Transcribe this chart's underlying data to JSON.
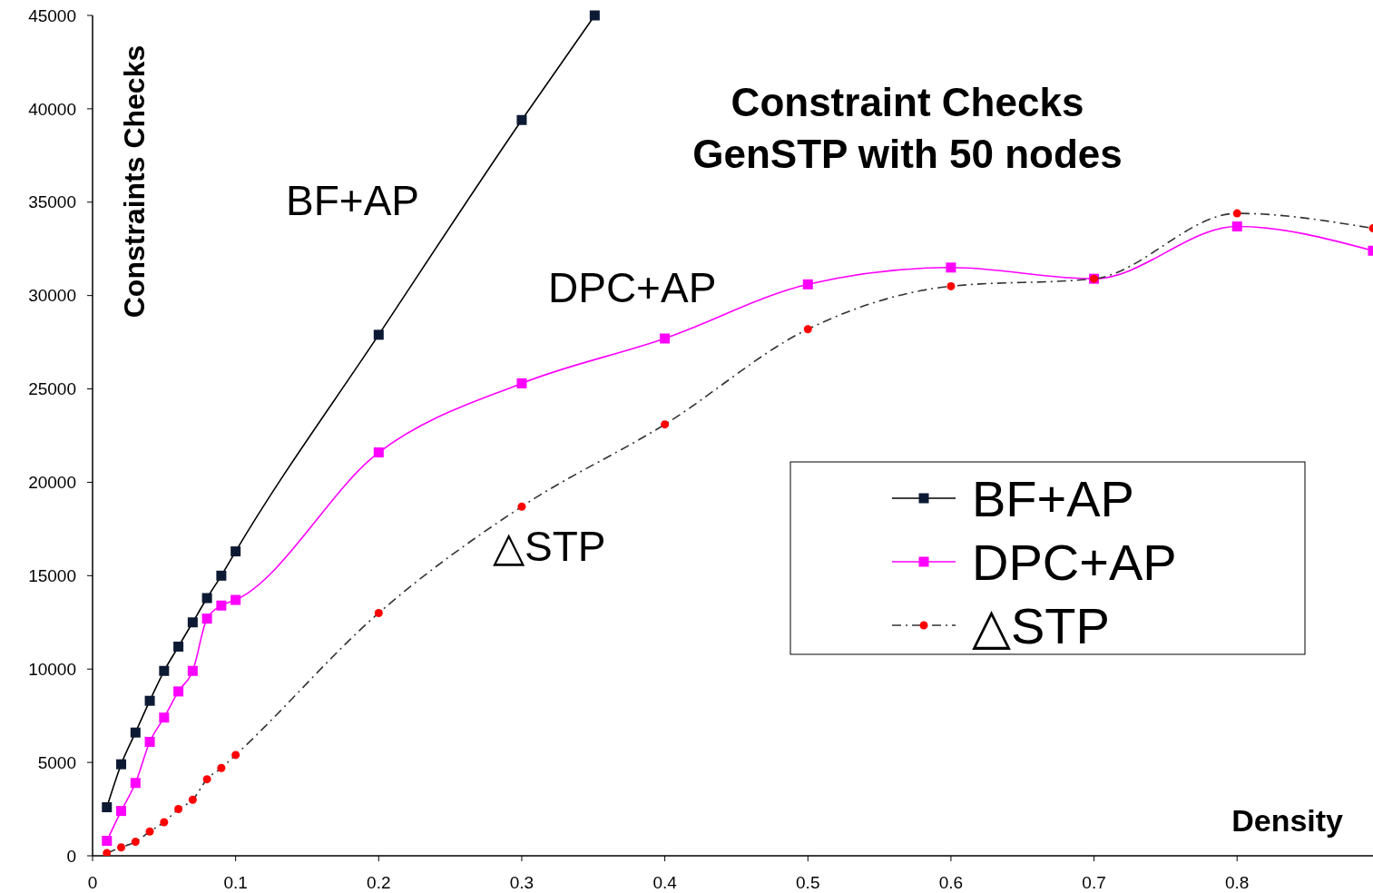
{
  "chart_data": {
    "type": "line",
    "title": "Constraint Checks\nGenSTP with 50 nodes",
    "xlabel": "Density",
    "ylabel": "Constraints Checks",
    "xlim": [
      0,
      0.895
    ],
    "xticks": [
      0,
      0.1,
      0.2,
      0.3,
      0.4,
      0.5,
      0.6,
      0.7,
      0.8
    ],
    "ylim": [
      0,
      45000
    ],
    "yticks": [
      0,
      5000,
      10000,
      15000,
      20000,
      25000,
      30000,
      35000,
      40000,
      45000
    ],
    "grid": false,
    "legend": "right",
    "annotations": [
      "BF+AP",
      "DPC+AP",
      "△STP"
    ],
    "series": [
      {
        "name": "BF+AP",
        "color": "#000000",
        "marker": "square",
        "line_style": "solid",
        "x": [
          0.01,
          0.02,
          0.03,
          0.04,
          0.05,
          0.06,
          0.07,
          0.08,
          0.09,
          0.1,
          0.2,
          0.3,
          0.351
        ],
        "values": [
          2600,
          4900,
          6600,
          8300,
          9900,
          11200,
          12500,
          13800,
          15000,
          16300,
          27900,
          39400,
          45000
        ],
        "colors": [
          "#0d1a33",
          "#0d1a33",
          "#0d1a33",
          "#0d1a33",
          "#0d1a33",
          "#0d1a33",
          "#0d1a33",
          "#0d1a33",
          "#0d1a33",
          "#0d1a33",
          "#0d1a33",
          "#0d1a33",
          "#0d1a33"
        ]
      },
      {
        "name": "DPC+AP",
        "color": "#ff00ff",
        "marker": "square",
        "line_style": "solid",
        "x": [
          0.01,
          0.02,
          0.03,
          0.04,
          0.05,
          0.06,
          0.07,
          0.08,
          0.09,
          0.1,
          0.2,
          0.3,
          0.4,
          0.5,
          0.6,
          0.7,
          0.8,
          0.895
        ],
        "values": [
          800,
          2400,
          3900,
          6100,
          7400,
          8800,
          9900,
          12700,
          13400,
          13700,
          21600,
          25300,
          27700,
          30600,
          31500,
          30900,
          33700,
          32400
        ]
      },
      {
        "name": "△STP",
        "color": "#333333",
        "marker": "circle",
        "line_style": "dashed",
        "x": [
          0.01,
          0.02,
          0.03,
          0.04,
          0.05,
          0.06,
          0.07,
          0.08,
          0.09,
          0.1,
          0.2,
          0.3,
          0.4,
          0.5,
          0.6,
          0.7,
          0.8,
          0.895
        ],
        "values": [
          150,
          450,
          750,
          1300,
          1800,
          2500,
          3000,
          4100,
          4700,
          5400,
          13000,
          18700,
          23100,
          28200,
          30500,
          30900,
          34400,
          33600
        ],
        "colors": [
          "#ff0000",
          "#ff0000",
          "#ff0000",
          "#ff0000",
          "#ff0000",
          "#ff0000",
          "#ff0000",
          "#ff0000",
          "#ff0000",
          "#ff0000",
          "#ff0000",
          "#ff0000",
          "#ff0000",
          "#ff0000",
          "#ff0000",
          "#ff0000",
          "#ff0000",
          "#ff0000"
        ]
      }
    ]
  }
}
